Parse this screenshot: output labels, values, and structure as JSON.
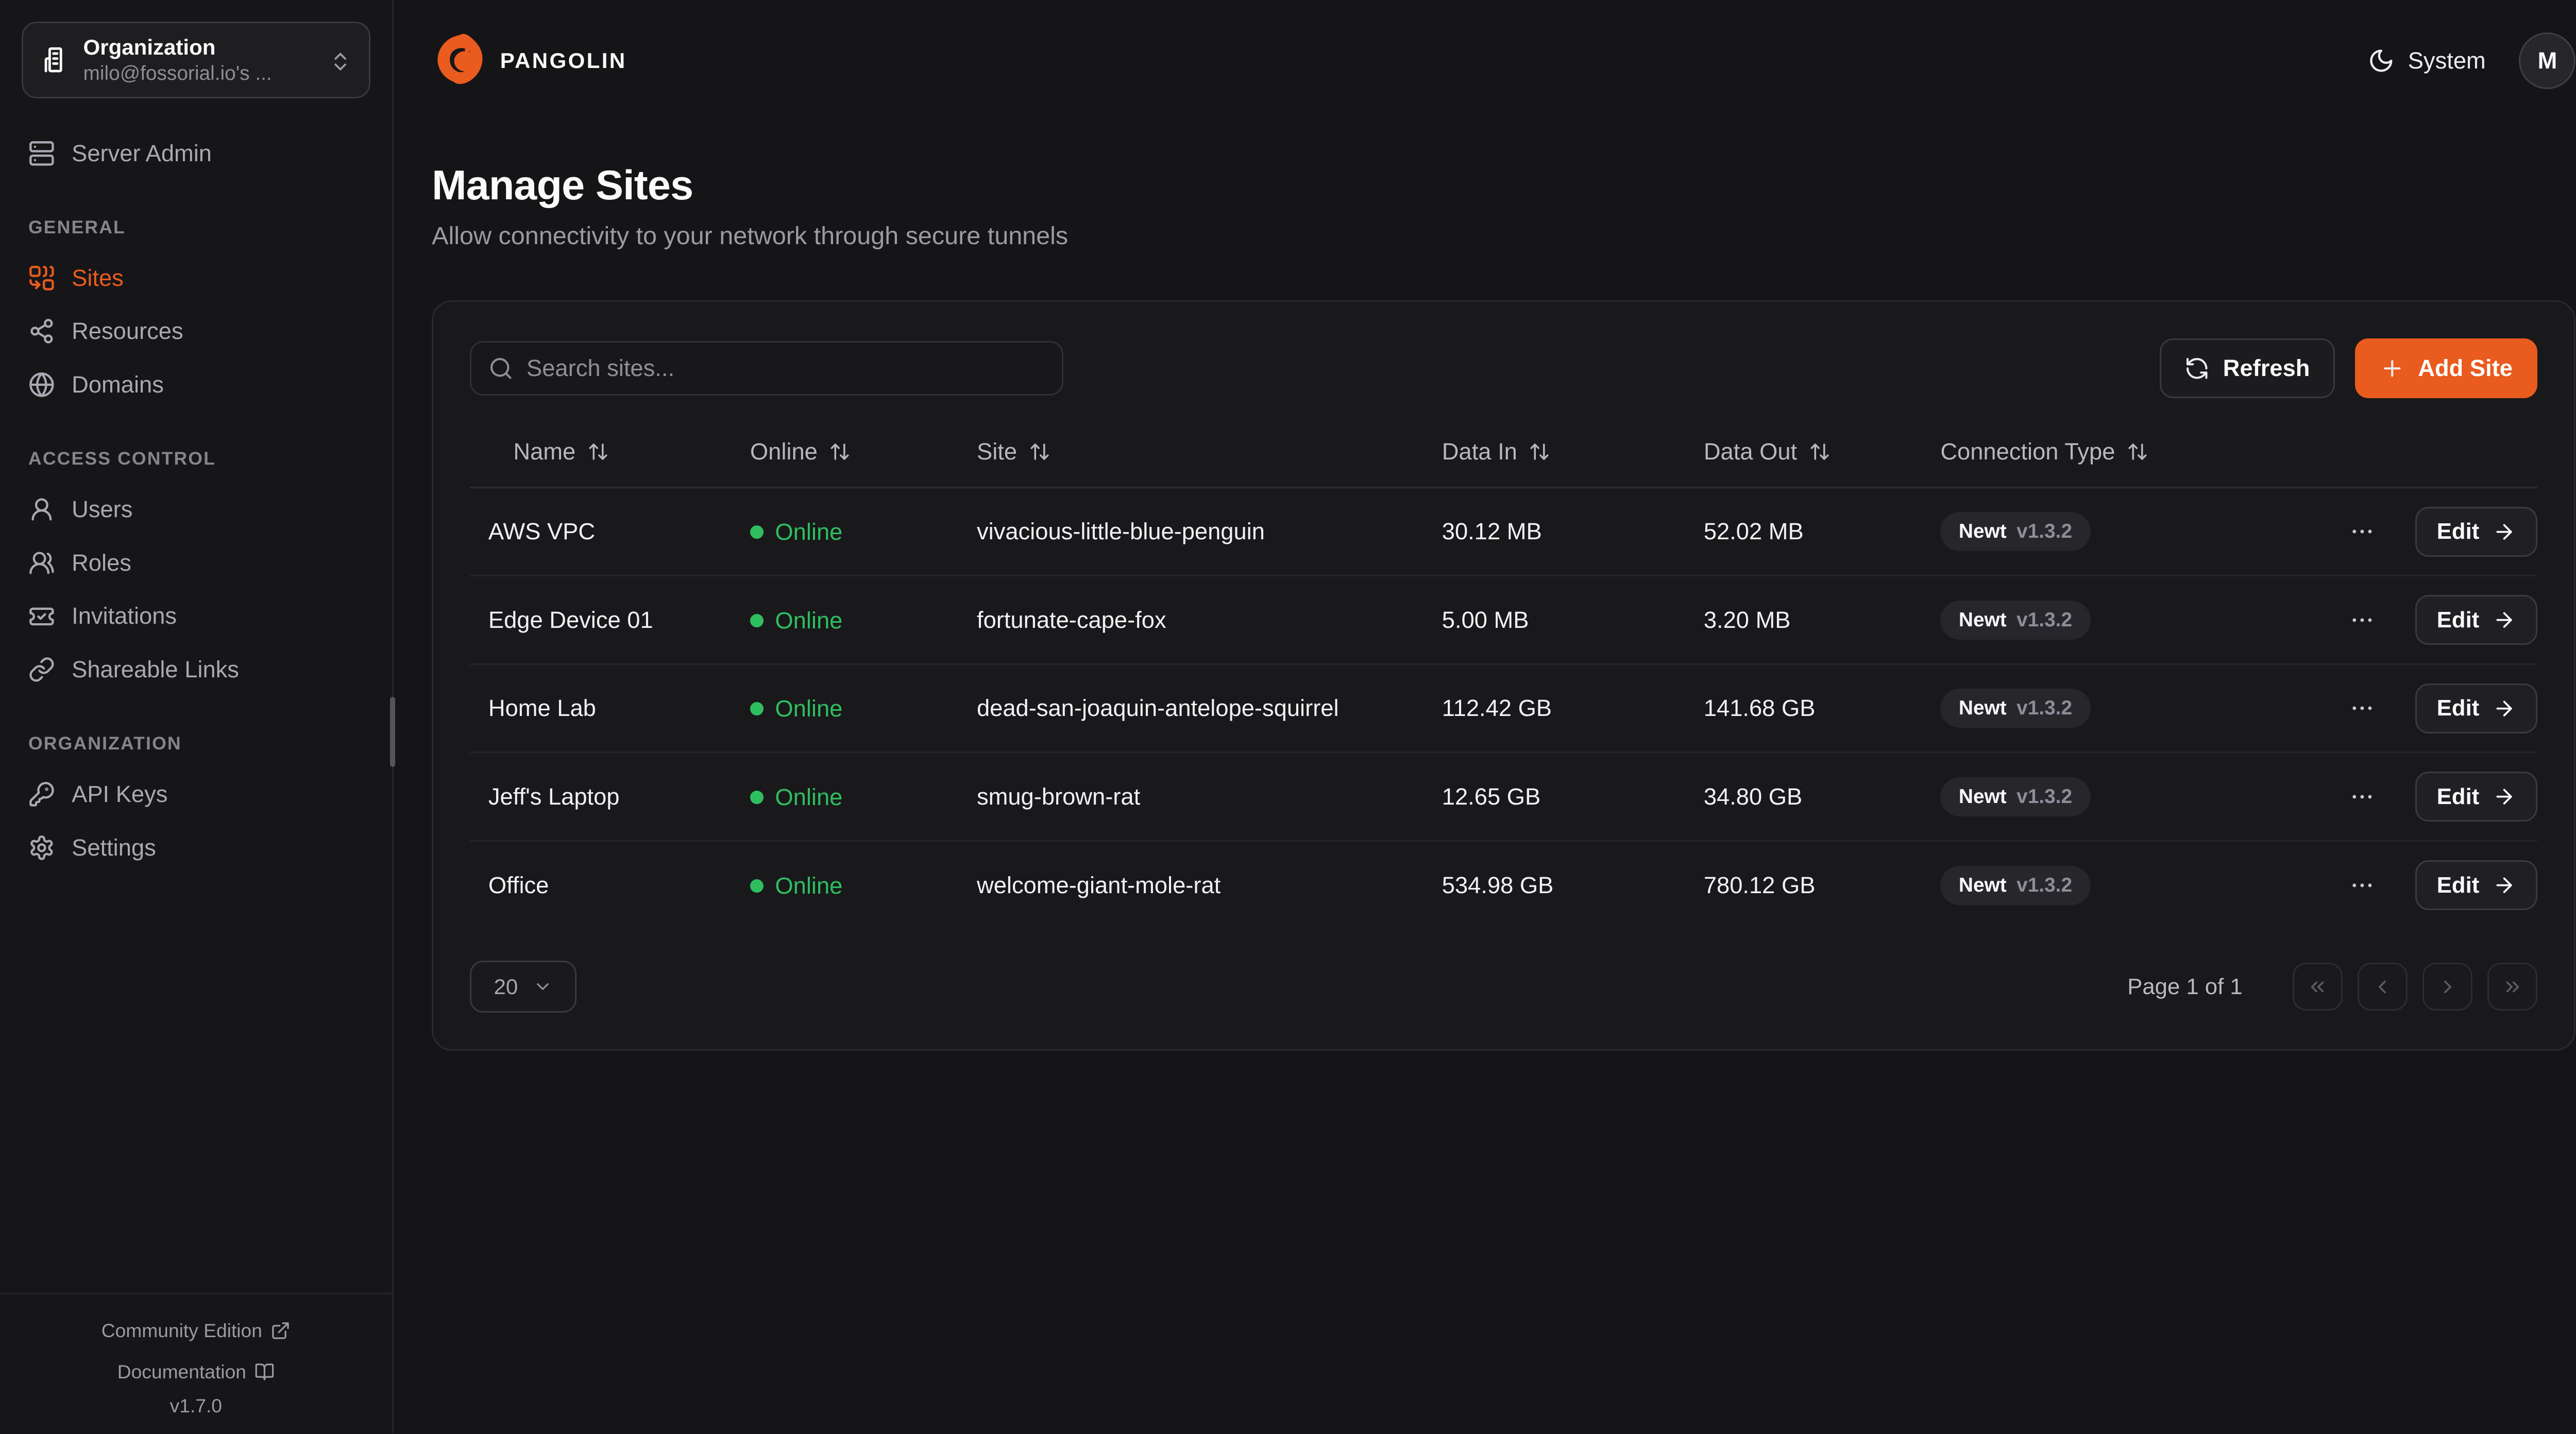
{
  "colors": {
    "accent": "#E95B1E",
    "online_green": "#2EBE60"
  },
  "org_selector": {
    "label": "Organization",
    "value": "milo@fossorial.io's ..."
  },
  "sidebar": {
    "server_admin_label": "Server Admin",
    "sections": [
      {
        "label": "GENERAL",
        "items": [
          {
            "label": "Sites",
            "icon": "sites-icon",
            "active": true
          },
          {
            "label": "Resources",
            "icon": "resources-icon",
            "active": false
          },
          {
            "label": "Domains",
            "icon": "globe-icon",
            "active": false
          }
        ]
      },
      {
        "label": "ACCESS CONTROL",
        "items": [
          {
            "label": "Users",
            "icon": "user-icon",
            "active": false
          },
          {
            "label": "Roles",
            "icon": "roles-icon",
            "active": false
          },
          {
            "label": "Invitations",
            "icon": "invitations-icon",
            "active": false
          },
          {
            "label": "Shareable Links",
            "icon": "link-icon",
            "active": false
          }
        ]
      },
      {
        "label": "ORGANIZATION",
        "items": [
          {
            "label": "API Keys",
            "icon": "key-icon",
            "active": false
          },
          {
            "label": "Settings",
            "icon": "settings-icon",
            "active": false
          }
        ]
      }
    ],
    "footer": {
      "community_label": "Community Edition",
      "documentation_label": "Documentation",
      "version": "v1.7.0"
    }
  },
  "topbar": {
    "brand": "PANGOLIN",
    "theme_label": "System",
    "avatar_initial": "M"
  },
  "page": {
    "title": "Manage Sites",
    "subtitle": "Allow connectivity to your network through secure tunnels"
  },
  "toolbar": {
    "search_placeholder": "Search sites...",
    "refresh_label": "Refresh",
    "add_site_label": "Add Site"
  },
  "table": {
    "columns": [
      "Name",
      "Online",
      "Site",
      "Data In",
      "Data Out",
      "Connection Type"
    ],
    "edit_label": "Edit",
    "rows": [
      {
        "name": "AWS VPC",
        "status": "Online",
        "site": "vivacious-little-blue-penguin",
        "data_in": "30.12 MB",
        "data_out": "52.02 MB",
        "conn_type": "Newt",
        "conn_version": "v1.3.2"
      },
      {
        "name": "Edge Device 01",
        "status": "Online",
        "site": "fortunate-cape-fox",
        "data_in": "5.00 MB",
        "data_out": "3.20 MB",
        "conn_type": "Newt",
        "conn_version": "v1.3.2"
      },
      {
        "name": "Home Lab",
        "status": "Online",
        "site": "dead-san-joaquin-antelope-squirrel",
        "data_in": "112.42 GB",
        "data_out": "141.68 GB",
        "conn_type": "Newt",
        "conn_version": "v1.3.2"
      },
      {
        "name": "Jeff's Laptop",
        "status": "Online",
        "site": "smug-brown-rat",
        "data_in": "12.65 GB",
        "data_out": "34.80 GB",
        "conn_type": "Newt",
        "conn_version": "v1.3.2"
      },
      {
        "name": "Office",
        "status": "Online",
        "site": "welcome-giant-mole-rat",
        "data_in": "534.98 GB",
        "data_out": "780.12 GB",
        "conn_type": "Newt",
        "conn_version": "v1.3.2"
      }
    ]
  },
  "pagination": {
    "page_size": "20",
    "page_info": "Page 1 of 1"
  }
}
